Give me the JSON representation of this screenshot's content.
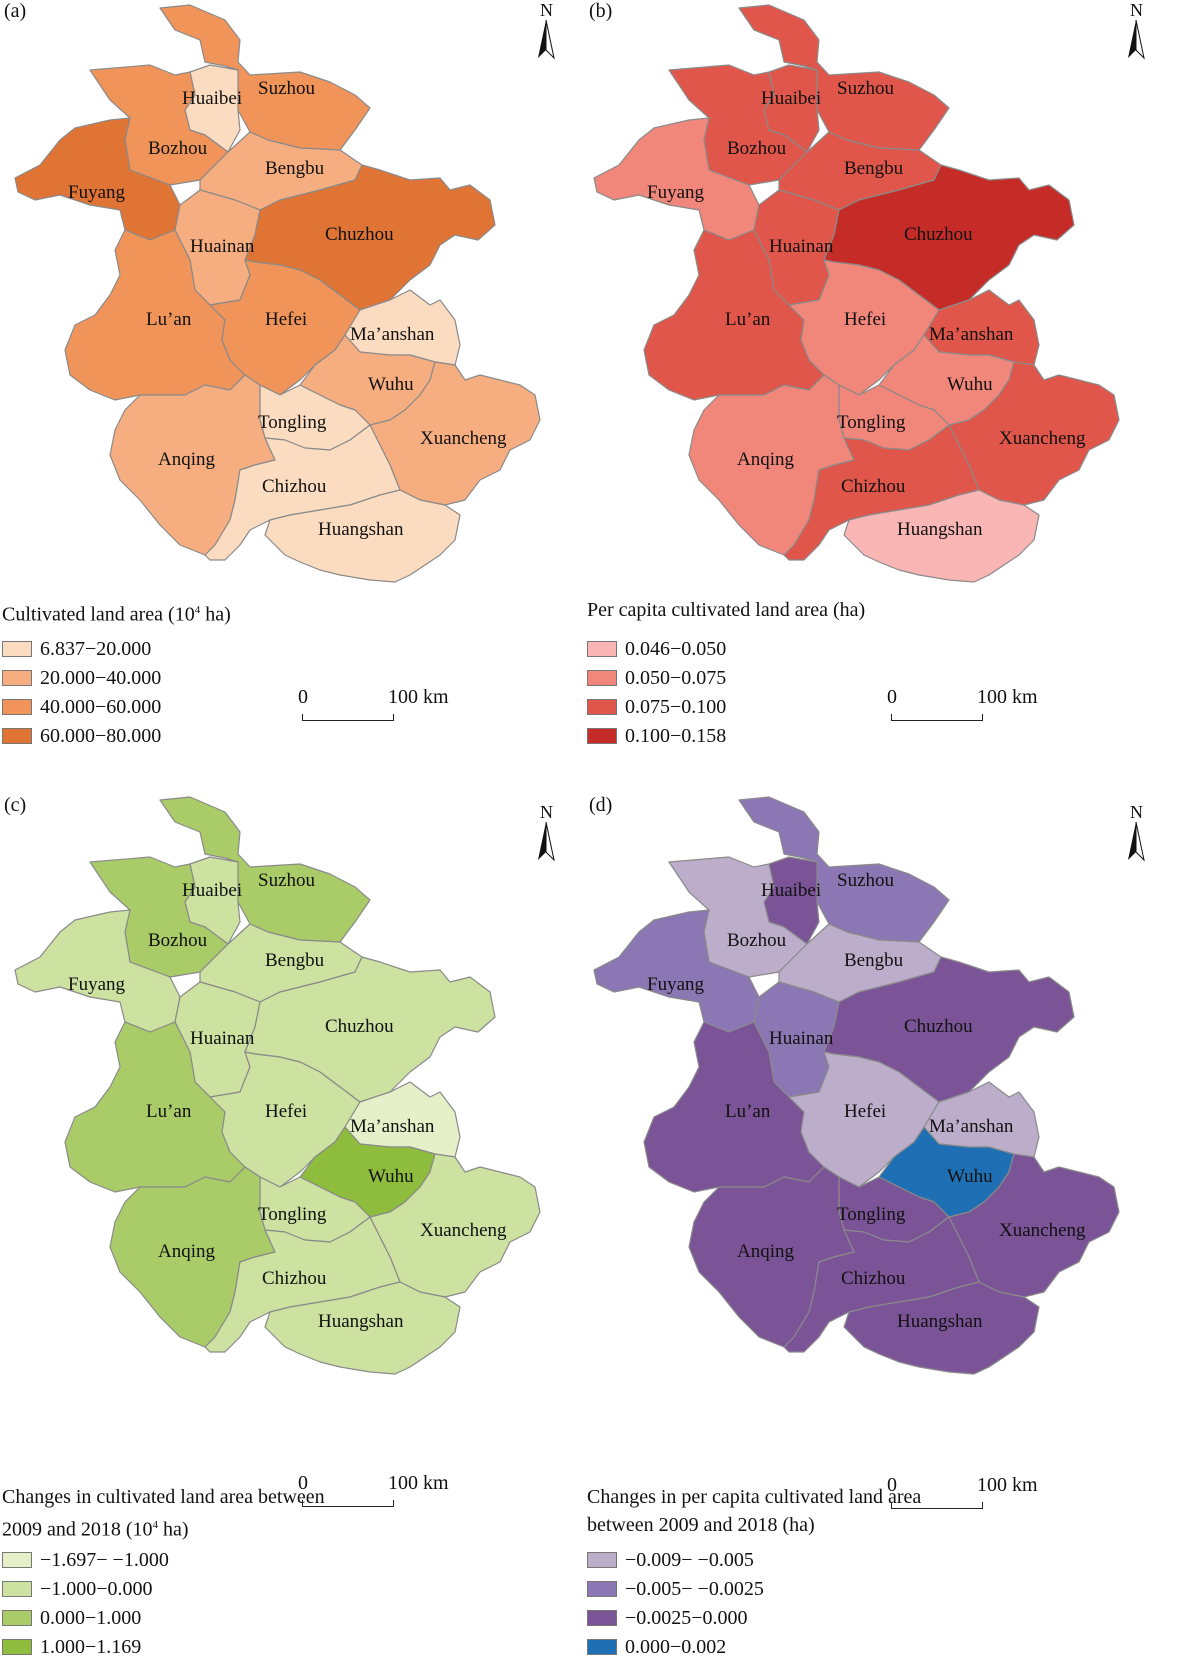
{
  "scale_label_zero": "0",
  "scale_label_end": "100 km",
  "north_label": "N",
  "city_names": [
    "Huaibei",
    "Suzhou",
    "Bozhou",
    "Bengbu",
    "Fuyang",
    "Huainan",
    "Chuzhou",
    "Lu’an",
    "Hefei",
    "Ma’anshan",
    "Wuhu",
    "Tongling",
    "Anqing",
    "Xuancheng",
    "Chizhou",
    "Huangshan"
  ],
  "panels": [
    {
      "label": "(a)",
      "legend_title_lines": [
        "Cultivated land area (10",
        "4",
        " ha)"
      ],
      "legend": [
        {
          "label": "6.837−20.000",
          "color": "#fcdcc0"
        },
        {
          "label": "20.000−40.000",
          "color": "#f6ae80"
        },
        {
          "label": "40.000−60.000",
          "color": "#f09459"
        },
        {
          "label": "60.000−80.000",
          "color": "#e07434"
        }
      ],
      "classes": {
        "Huaibei": 0,
        "Suzhou": 2,
        "Bozhou": 2,
        "Bengbu": 1,
        "Fuyang": 3,
        "Huainan": 1,
        "Chuzhou": 3,
        "Lu’an": 2,
        "Hefei": 2,
        "Ma’anshan": 0,
        "Wuhu": 1,
        "Tongling": 0,
        "Anqing": 1,
        "Xuancheng": 1,
        "Chizhou": 0,
        "Huangshan": 0
      }
    },
    {
      "label": "(b)",
      "legend_title_lines": [
        "Per capita cultivated land area (ha)"
      ],
      "legend": [
        {
          "label": "0.046−0.050",
          "color": "#f9b6b4"
        },
        {
          "label": "0.050−0.075",
          "color": "#f1867a"
        },
        {
          "label": "0.075−0.100",
          "color": "#e0564a"
        },
        {
          "label": "0.100−0.158",
          "color": "#c52c28"
        }
      ],
      "classes": {
        "Huaibei": 2,
        "Suzhou": 2,
        "Bozhou": 2,
        "Bengbu": 2,
        "Fuyang": 1,
        "Huainan": 2,
        "Chuzhou": 3,
        "Lu’an": 2,
        "Hefei": 1,
        "Ma’anshan": 2,
        "Wuhu": 1,
        "Tongling": 1,
        "Anqing": 1,
        "Xuancheng": 2,
        "Chizhou": 2,
        "Huangshan": 0
      }
    },
    {
      "label": "(c)",
      "legend_title_lines": [
        "Changes in cultivated land area between",
        "2009 and 2018 (10",
        "4",
        " ha)"
      ],
      "legend": [
        {
          "label": "−1.697− −1.000",
          "color": "#e6f0c8"
        },
        {
          "label": "−1.000−0.000",
          "color": "#cde1a0"
        },
        {
          "label": "0.000−1.000",
          "color": "#a9cc69"
        },
        {
          "label": "1.000−1.169",
          "color": "#8ebc3c"
        }
      ],
      "classes": {
        "Huaibei": 1,
        "Suzhou": 2,
        "Bozhou": 2,
        "Bengbu": 1,
        "Fuyang": 1,
        "Huainan": 1,
        "Chuzhou": 1,
        "Lu’an": 2,
        "Hefei": 1,
        "Ma’anshan": 0,
        "Wuhu": 3,
        "Tongling": 1,
        "Anqing": 2,
        "Xuancheng": 1,
        "Chizhou": 1,
        "Huangshan": 1
      }
    },
    {
      "label": "(d)",
      "legend_title_lines": [
        "Changes in per capita cultivated land area",
        "between 2009 and 2018 (ha)"
      ],
      "legend": [
        {
          "label": "−0.009− −0.005",
          "color": "#bcaecb"
        },
        {
          "label": "−0.005− −0.0025",
          "color": "#8a77b3"
        },
        {
          "label": "−0.0025−0.000",
          "color": "#7b5497"
        },
        {
          "label": "0.000−0.002",
          "color": "#1e6fb4"
        }
      ],
      "classes": {
        "Huaibei": 2,
        "Suzhou": 1,
        "Bozhou": 0,
        "Bengbu": 0,
        "Fuyang": 1,
        "Huainan": 1,
        "Chuzhou": 2,
        "Lu’an": 2,
        "Hefei": 0,
        "Ma’anshan": 0,
        "Wuhu": 3,
        "Tongling": 2,
        "Anqing": 2,
        "Xuancheng": 2,
        "Chizhou": 2,
        "Huangshan": 2
      }
    }
  ]
}
